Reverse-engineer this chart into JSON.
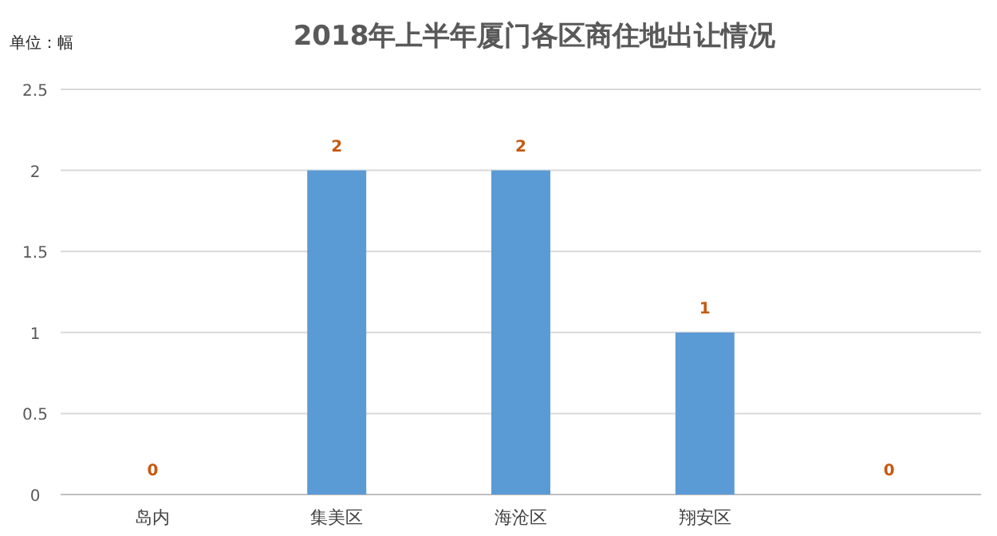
{
  "chart_data": {
    "type": "bar",
    "title": "2018年上半年厦门各区商住地出让情况",
    "annotations": [
      "单位：幅"
    ],
    "categories": [
      "岛内",
      "集美区",
      "海沧区",
      "翔安区",
      null
    ],
    "values": [
      0,
      2,
      2,
      1,
      0
    ],
    "color": "#5b9bd5",
    "ylim": [
      0,
      2.5
    ],
    "yticks": [
      0,
      0.5,
      1,
      1.5,
      2,
      2.5
    ],
    "grid": "y",
    "data_labels": true
  }
}
